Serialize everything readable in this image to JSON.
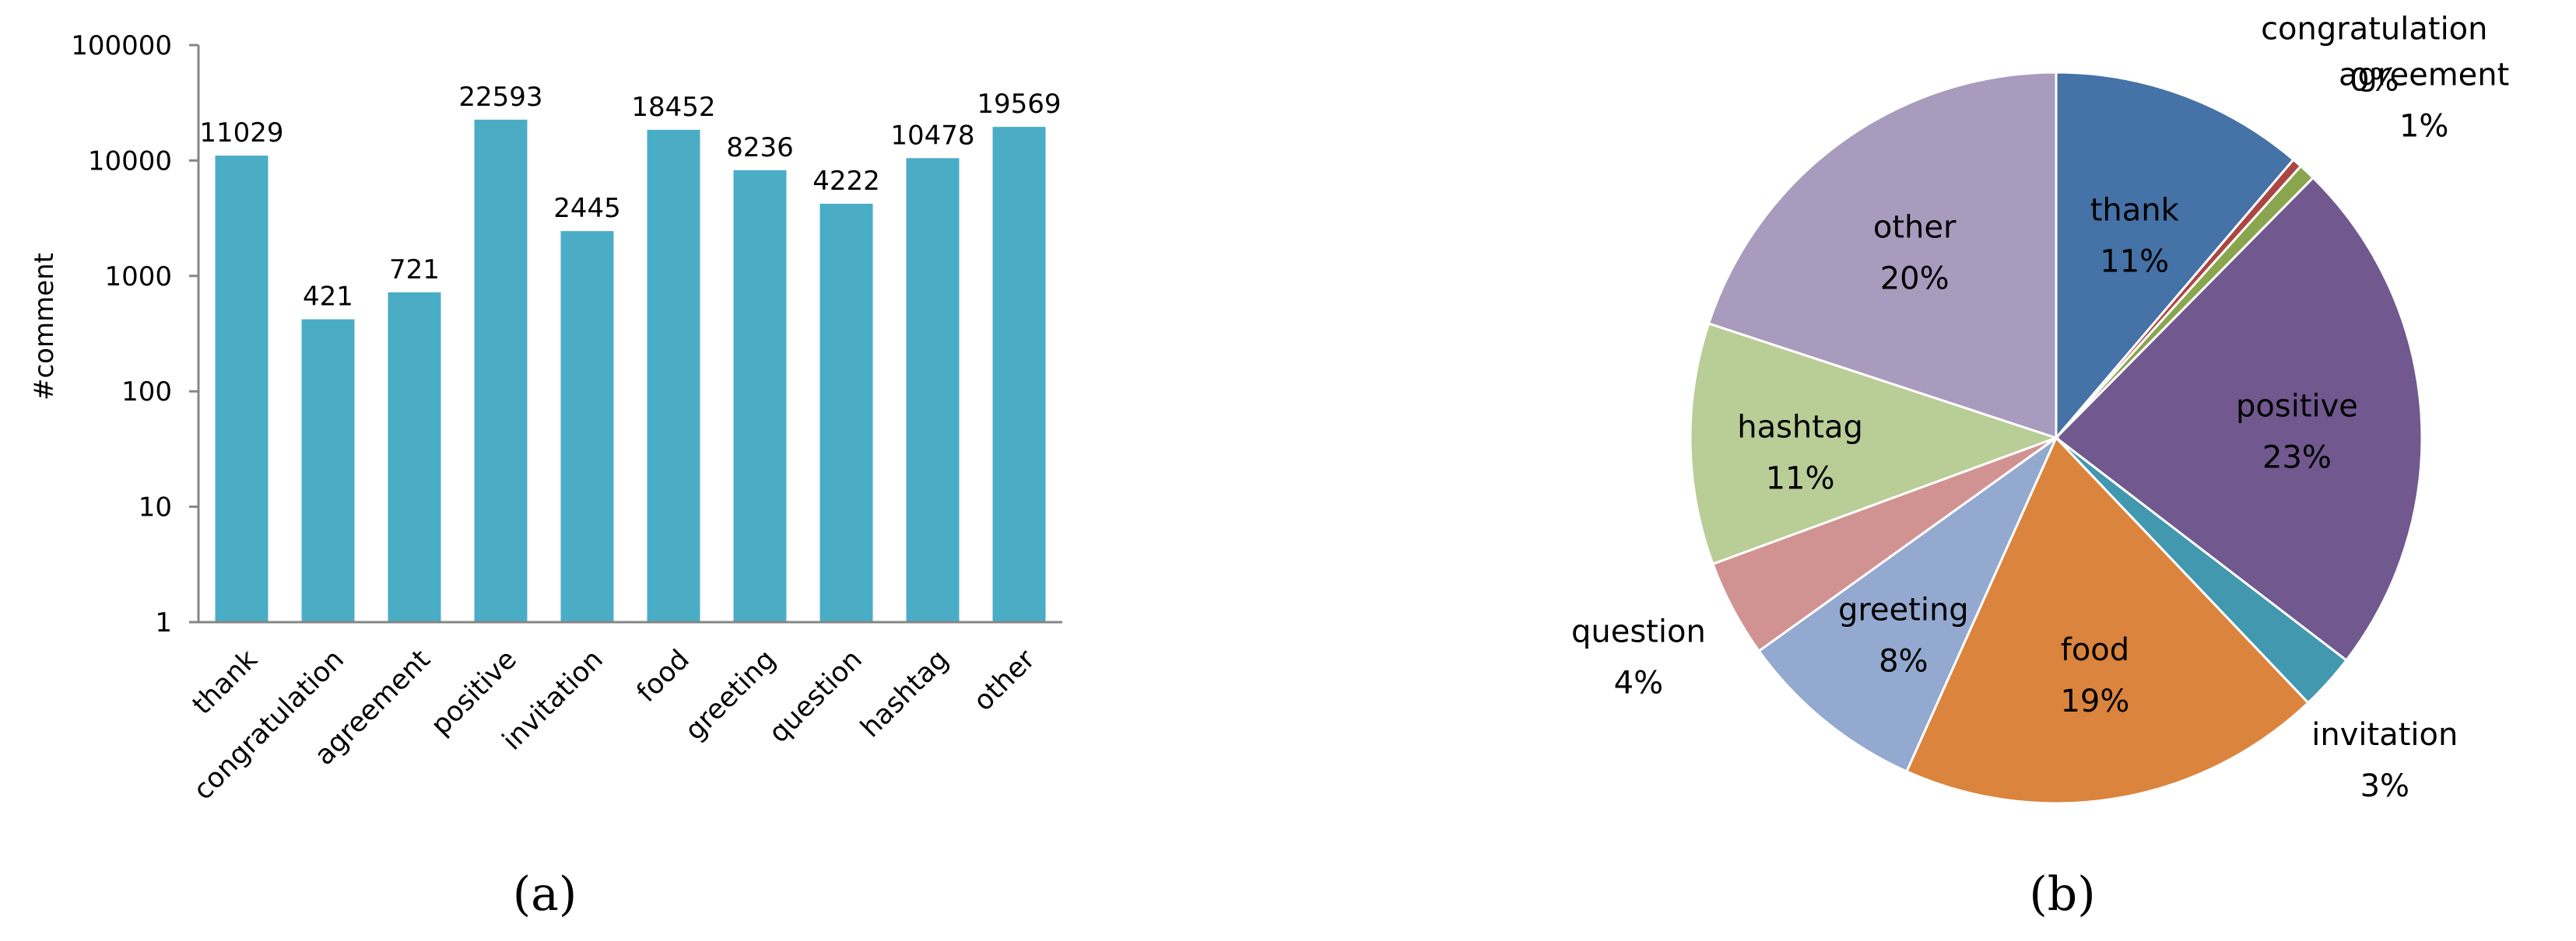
{
  "chart_data": [
    {
      "type": "bar",
      "ylabel": "#comment",
      "xlabel": "",
      "yscale": "log",
      "ylim": [
        1,
        100000
      ],
      "yticks": [
        "1",
        "10",
        "100",
        "1000",
        "10000",
        "100000"
      ],
      "categories": [
        "thank",
        "congratulation",
        "agreement",
        "positive",
        "invitation",
        "food",
        "greeting",
        "question",
        "hashtag",
        "other"
      ],
      "values": [
        11029,
        421,
        721,
        22593,
        2445,
        18452,
        8236,
        4222,
        10478,
        19569
      ],
      "color": "#4bacc6",
      "grid": false,
      "caption": "(a)"
    },
    {
      "type": "pie",
      "labels": [
        "thank",
        "congratulation",
        "agreement",
        "positive",
        "invitation",
        "food",
        "greeting",
        "question",
        "hashtag",
        "other"
      ],
      "values": [
        11029,
        421,
        721,
        22593,
        2445,
        18452,
        8236,
        4222,
        10478,
        19569
      ],
      "percents": [
        "11%",
        "0%",
        "1%",
        "23%",
        "3%",
        "19%",
        "8%",
        "4%",
        "11%",
        "20%"
      ],
      "colors": [
        "#4572a7",
        "#aa4643",
        "#89a54e",
        "#71588f",
        "#4198af",
        "#db843d",
        "#93a9cf",
        "#d19392",
        "#b9cd96",
        "#a99bbd"
      ],
      "caption": "(b)"
    }
  ]
}
